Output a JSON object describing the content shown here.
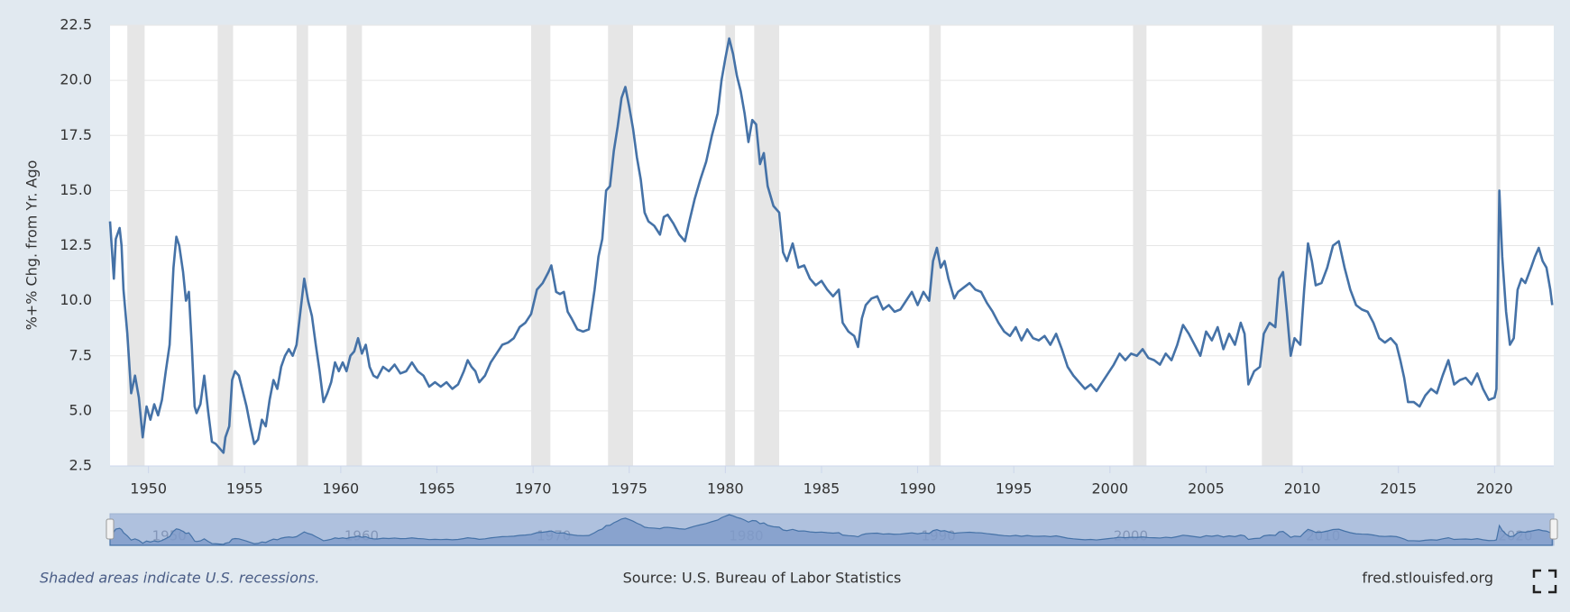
{
  "chart_data": {
    "type": "line",
    "y_label": "%+% Chg. from Yr. Ago",
    "footer_note": "Shaded areas indicate U.S. recessions.",
    "source": "Source: U.S. Bureau of Labor Statistics",
    "site": "fred.stlouisfed.org",
    "xlim": [
      1948.0,
      2023.08
    ],
    "xticks": [
      1950,
      1955,
      1960,
      1965,
      1970,
      1975,
      1980,
      1985,
      1990,
      1995,
      2000,
      2005,
      2010,
      2015,
      2020
    ],
    "navigator_ticks": [
      1950,
      1960,
      1970,
      1980,
      1990,
      2000,
      2010,
      2020
    ],
    "ylim": [
      2.5,
      22.5
    ],
    "yticks": [
      2.5,
      {
        "value": 5,
        "label": "5.0"
      },
      7.5,
      {
        "value": 10,
        "label": "10.0"
      },
      12.5,
      {
        "value": 15,
        "label": "15.0"
      },
      17.5,
      {
        "value": 20,
        "label": "20.0"
      },
      22.5
    ],
    "grid": true,
    "recession_color": "#e6e6e6",
    "recessions": [
      [
        1948.9,
        1949.8
      ],
      [
        1953.6,
        1954.4
      ],
      [
        1957.7,
        1958.3
      ],
      [
        1960.3,
        1961.1
      ],
      [
        1969.9,
        1970.9
      ],
      [
        1973.9,
        1975.2
      ],
      [
        1980.0,
        1980.5
      ],
      [
        1981.5,
        1982.8
      ],
      [
        1990.6,
        1991.2
      ],
      [
        2001.2,
        2001.9
      ],
      [
        2007.9,
        2009.5
      ],
      [
        2020.1,
        2020.3
      ]
    ],
    "x": [
      1948.0,
      1948.2,
      1948.3,
      1948.5,
      1948.6,
      1948.7,
      1948.9,
      1949.1,
      1949.3,
      1949.5,
      1949.7,
      1949.9,
      1950.1,
      1950.3,
      1950.5,
      1950.7,
      1950.9,
      1951.1,
      1951.3,
      1951.45,
      1951.6,
      1951.8,
      1951.95,
      1952.1,
      1952.25,
      1952.4,
      1952.5,
      1952.7,
      1952.9,
      1953.1,
      1953.3,
      1953.5,
      1953.7,
      1953.9,
      1954.0,
      1954.2,
      1954.35,
      1954.5,
      1954.7,
      1954.9,
      1955.1,
      1955.3,
      1955.5,
      1955.7,
      1955.9,
      1956.1,
      1956.3,
      1956.5,
      1956.7,
      1956.9,
      1957.1,
      1957.3,
      1957.5,
      1957.7,
      1957.9,
      1958.1,
      1958.3,
      1958.5,
      1958.7,
      1958.9,
      1959.1,
      1959.3,
      1959.5,
      1959.7,
      1959.9,
      1960.1,
      1960.3,
      1960.5,
      1960.7,
      1960.9,
      1961.1,
      1961.3,
      1961.5,
      1961.7,
      1961.9,
      1962.2,
      1962.5,
      1962.8,
      1963.1,
      1963.4,
      1963.7,
      1964.0,
      1964.3,
      1964.6,
      1964.9,
      1965.2,
      1965.5,
      1965.8,
      1966.1,
      1966.4,
      1966.6,
      1966.8,
      1967.0,
      1967.2,
      1967.5,
      1967.8,
      1968.1,
      1968.4,
      1968.7,
      1969.0,
      1969.3,
      1969.6,
      1969.9,
      1970.2,
      1970.5,
      1970.8,
      1970.95,
      1971.2,
      1971.4,
      1971.6,
      1971.8,
      1972.0,
      1972.3,
      1972.6,
      1972.9,
      1973.2,
      1973.4,
      1973.6,
      1973.8,
      1974.0,
      1974.2,
      1974.4,
      1974.6,
      1974.8,
      1975.0,
      1975.2,
      1975.4,
      1975.6,
      1975.8,
      1976.0,
      1976.3,
      1976.6,
      1976.8,
      1977.0,
      1977.3,
      1977.6,
      1977.9,
      1978.1,
      1978.4,
      1978.7,
      1979.0,
      1979.3,
      1979.6,
      1979.8,
      1980.0,
      1980.2,
      1980.4,
      1980.6,
      1980.8,
      1981.0,
      1981.2,
      1981.4,
      1981.6,
      1981.8,
      1982.0,
      1982.2,
      1982.5,
      1982.8,
      1983.0,
      1983.2,
      1983.5,
      1983.8,
      1984.1,
      1984.4,
      1984.7,
      1985.0,
      1985.3,
      1985.6,
      1985.9,
      1986.1,
      1986.4,
      1986.7,
      1986.9,
      1987.1,
      1987.3,
      1987.6,
      1987.9,
      1988.2,
      1988.5,
      1988.8,
      1989.1,
      1989.4,
      1989.7,
      1990.0,
      1990.3,
      1990.6,
      1990.8,
      1991.0,
      1991.2,
      1991.4,
      1991.6,
      1991.9,
      1992.1,
      1992.4,
      1992.7,
      1993.0,
      1993.3,
      1993.6,
      1993.9,
      1994.2,
      1994.5,
      1994.8,
      1995.1,
      1995.4,
      1995.7,
      1996.0,
      1996.3,
      1996.6,
      1996.9,
      1997.2,
      1997.5,
      1997.8,
      1998.1,
      1998.4,
      1998.7,
      1999.0,
      1999.3,
      1999.6,
      1999.9,
      2000.2,
      2000.5,
      2000.8,
      2001.1,
      2001.4,
      2001.7,
      2002.0,
      2002.3,
      2002.6,
      2002.9,
      2003.2,
      2003.5,
      2003.8,
      2004.1,
      2004.4,
      2004.7,
      2005.0,
      2005.3,
      2005.6,
      2005.9,
      2006.2,
      2006.5,
      2006.8,
      2007.0,
      2007.2,
      2007.5,
      2007.8,
      2008.0,
      2008.3,
      2008.6,
      2008.8,
      2009.0,
      2009.2,
      2009.4,
      2009.6,
      2009.9,
      2010.1,
      2010.3,
      2010.5,
      2010.7,
      2011.0,
      2011.3,
      2011.6,
      2011.9,
      2012.2,
      2012.5,
      2012.8,
      2013.1,
      2013.4,
      2013.7,
      2014.0,
      2014.3,
      2014.6,
      2014.9,
      2015.1,
      2015.3,
      2015.5,
      2015.8,
      2016.1,
      2016.4,
      2016.7,
      2017.0,
      2017.3,
      2017.6,
      2017.9,
      2018.2,
      2018.5,
      2018.8,
      2019.1,
      2019.4,
      2019.7,
      2020.0,
      2020.1,
      2020.25,
      2020.4,
      2020.6,
      2020.8,
      2021.0,
      2021.2,
      2021.4,
      2021.6,
      2021.9,
      2022.1,
      2022.3,
      2022.5,
      2022.7,
      2022.9,
      2023.0
    ],
    "series": [
      {
        "color": "#4572a7",
        "values": [
          13.6,
          11.0,
          12.8,
          13.3,
          12.5,
          10.5,
          8.5,
          5.8,
          6.6,
          5.6,
          3.8,
          5.2,
          4.6,
          5.3,
          4.8,
          5.5,
          6.8,
          8.0,
          11.5,
          12.9,
          12.5,
          11.3,
          10.0,
          10.4,
          8.0,
          5.2,
          4.9,
          5.3,
          6.6,
          5.0,
          3.6,
          3.5,
          3.3,
          3.1,
          3.8,
          4.3,
          6.4,
          6.8,
          6.6,
          5.9,
          5.2,
          4.3,
          3.5,
          3.7,
          4.6,
          4.3,
          5.5,
          6.4,
          6.0,
          7.0,
          7.5,
          7.8,
          7.5,
          8.0,
          9.5,
          11.0,
          10.0,
          9.3,
          8.0,
          6.8,
          5.4,
          5.8,
          6.3,
          7.2,
          6.8,
          7.2,
          6.8,
          7.5,
          7.7,
          8.3,
          7.6,
          8.0,
          7.0,
          6.6,
          6.5,
          7.0,
          6.8,
          7.1,
          6.7,
          6.8,
          7.2,
          6.8,
          6.6,
          6.1,
          6.3,
          6.1,
          6.3,
          6.0,
          6.2,
          6.8,
          7.3,
          7.0,
          6.8,
          6.3,
          6.6,
          7.2,
          7.6,
          8.0,
          8.1,
          8.3,
          8.8,
          9.0,
          9.4,
          10.5,
          10.8,
          11.3,
          11.6,
          10.4,
          10.3,
          10.4,
          9.5,
          9.2,
          8.7,
          8.6,
          8.7,
          10.5,
          12.0,
          12.8,
          15.0,
          15.2,
          16.8,
          17.9,
          19.2,
          19.7,
          18.8,
          17.8,
          16.5,
          15.5,
          14.0,
          13.6,
          13.4,
          13.0,
          13.8,
          13.9,
          13.5,
          13.0,
          12.7,
          13.5,
          14.6,
          15.5,
          16.3,
          17.5,
          18.5,
          20.0,
          21.0,
          21.9,
          21.2,
          20.2,
          19.5,
          18.5,
          17.2,
          18.2,
          18.0,
          16.2,
          16.7,
          15.2,
          14.3,
          14.0,
          12.2,
          11.8,
          12.6,
          11.5,
          11.6,
          11.0,
          10.7,
          10.9,
          10.5,
          10.2,
          10.5,
          9.0,
          8.6,
          8.4,
          7.9,
          9.2,
          9.8,
          10.1,
          10.2,
          9.6,
          9.8,
          9.5,
          9.6,
          10.0,
          10.4,
          9.8,
          10.4,
          10.0,
          11.8,
          12.4,
          11.5,
          11.8,
          11.0,
          10.1,
          10.4,
          10.6,
          10.8,
          10.5,
          10.4,
          9.9,
          9.5,
          9.0,
          8.6,
          8.4,
          8.8,
          8.2,
          8.7,
          8.3,
          8.2,
          8.4,
          8.0,
          8.5,
          7.8,
          7.0,
          6.6,
          6.3,
          6.0,
          6.2,
          5.9,
          6.3,
          6.7,
          7.1,
          7.6,
          7.3,
          7.6,
          7.5,
          7.8,
          7.4,
          7.3,
          7.1,
          7.6,
          7.3,
          8.0,
          8.9,
          8.5,
          8.0,
          7.5,
          8.6,
          8.2,
          8.8,
          7.8,
          8.5,
          8.0,
          9.0,
          8.5,
          6.2,
          6.8,
          7.0,
          8.5,
          9.0,
          8.8,
          11.0,
          11.3,
          9.5,
          7.5,
          8.3,
          8.0,
          10.5,
          12.6,
          11.8,
          10.7,
          10.8,
          11.5,
          12.5,
          12.7,
          11.5,
          10.5,
          9.8,
          9.6,
          9.5,
          9.0,
          8.3,
          8.1,
          8.3,
          8.0,
          7.3,
          6.5,
          5.4,
          5.4,
          5.2,
          5.7,
          6.0,
          5.8,
          6.6,
          7.3,
          6.2,
          6.4,
          6.5,
          6.2,
          6.7,
          6.0,
          5.5,
          5.6,
          6.0,
          15.0,
          12.0,
          9.5,
          8.0,
          8.3,
          10.5,
          11.0,
          10.8,
          11.5,
          12.0,
          12.4,
          11.8,
          11.5,
          10.5,
          9.8
        ]
      }
    ]
  }
}
